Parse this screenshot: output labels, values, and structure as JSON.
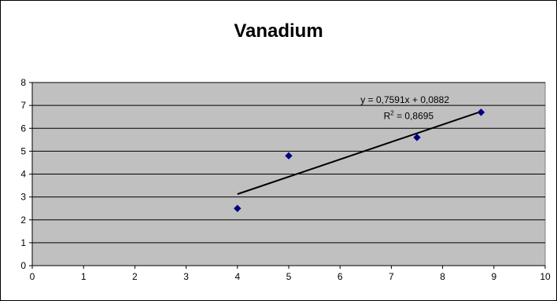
{
  "chart_data": {
    "type": "scatter",
    "title": "Vanadium",
    "xlabel": "",
    "ylabel": "",
    "xlim": [
      0,
      10
    ],
    "ylim": [
      0,
      8
    ],
    "x_ticks": [
      "0",
      "1",
      "2",
      "3",
      "4",
      "5",
      "6",
      "7",
      "8",
      "9",
      "10"
    ],
    "y_ticks": [
      "0",
      "1",
      "2",
      "3",
      "4",
      "5",
      "6",
      "7",
      "8"
    ],
    "grid": true,
    "legend": "none",
    "series": [
      {
        "points": [
          {
            "x": 4,
            "y": 2.5
          },
          {
            "x": 5,
            "y": 4.8
          },
          {
            "x": 7.5,
            "y": 5.6
          },
          {
            "x": 8.75,
            "y": 6.7
          }
        ],
        "marker": "diamond",
        "color": "#000080"
      }
    ],
    "trendline": {
      "type": "linear",
      "slope": 0.7591,
      "intercept": 0.0882,
      "x_range": [
        4,
        8.75
      ],
      "equation": "y = 0,7591x + 0,0882",
      "r_squared_prefix": "R",
      "r_squared_exp": "2",
      "r_squared_value": " = 0,8695",
      "color": "#000000"
    },
    "plot_background": "#c0c0c0",
    "gridline_color": "#000000"
  }
}
